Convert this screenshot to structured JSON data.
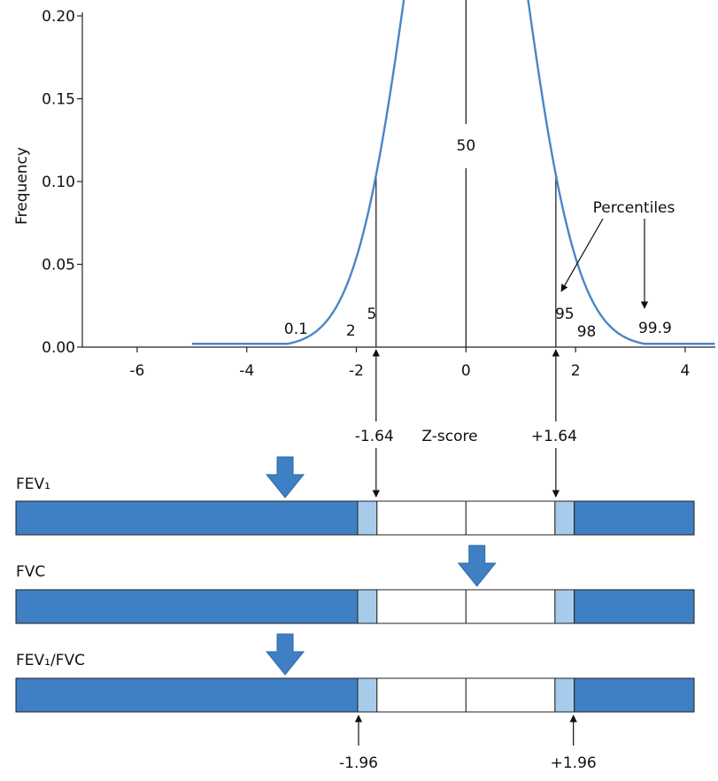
{
  "colors": {
    "curve": "#4a86c5",
    "bar_dark": "#3f7fc3",
    "bar_light": "#a7cbea",
    "arrow_fill": "#3f7fc3",
    "line": "#111111"
  },
  "chart_data": {
    "type": "line",
    "ylabel": "Frequency",
    "xlabel": "Z-score",
    "xlim": [
      -7,
      4.55
    ],
    "ylim": [
      0,
      0.2
    ],
    "x_ticks": [
      -6,
      -4,
      -2,
      0,
      2,
      4
    ],
    "y_ticks": [
      "0.00",
      "0.05",
      "0.10",
      "0.15",
      "0.20"
    ],
    "series": [
      {
        "distribution": "normal",
        "mean": 0,
        "sd": 1,
        "x_range": [
          -5,
          4.55
        ],
        "floor": 0.002
      }
    ],
    "percentile_labels": [
      {
        "text": "0.1",
        "z": -3.1
      },
      {
        "text": "2",
        "z": -2.05
      },
      {
        "text": "5",
        "z": -1.64
      },
      {
        "text": "50",
        "z": 0
      },
      {
        "text": "95",
        "z": 1.64
      },
      {
        "text": "98",
        "z": 2.05
      },
      {
        "text": "99.9",
        "z": 3.1
      }
    ],
    "percentiles_annotation": "Percentiles",
    "marker_lines": [
      -1.64,
      0,
      1.64
    ]
  },
  "cutoffs": {
    "lln_90": {
      "minus": "-1.64",
      "plus": "+1.64",
      "z": 1.64
    },
    "lln_95": {
      "minus": "-1.96",
      "plus": "+1.96",
      "z": 1.96
    }
  },
  "bars": [
    {
      "label": "FEV₁",
      "arrow_z": -3.3
    },
    {
      "label": "FVC",
      "arrow_z": 0.2
    },
    {
      "label": "FEV₁/FVC",
      "arrow_z": -3.3
    }
  ]
}
